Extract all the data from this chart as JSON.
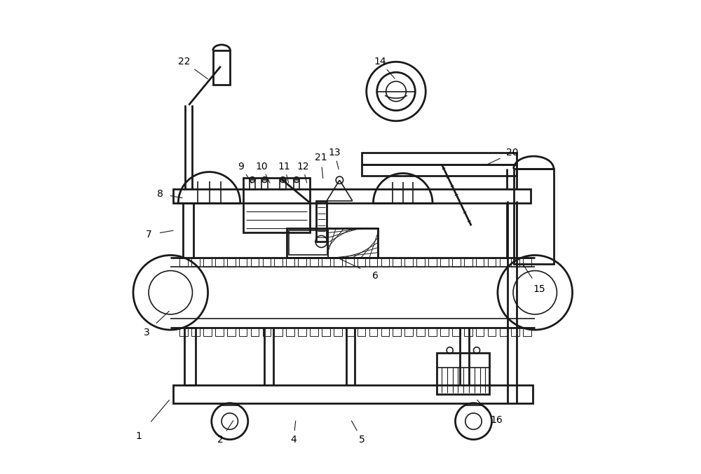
{
  "bg_color": "#ffffff",
  "line_color": "#1a1a1a",
  "figsize": [
    10.0,
    6.77
  ],
  "dpi": 100,
  "label_fs": 10,
  "labels": {
    "1": [
      0.035,
      0.062,
      0.105,
      0.145
    ],
    "2": [
      0.215,
      0.055,
      0.245,
      0.1
    ],
    "3": [
      0.052,
      0.29,
      0.105,
      0.34
    ],
    "4": [
      0.375,
      0.055,
      0.38,
      0.1
    ],
    "5": [
      0.525,
      0.055,
      0.5,
      0.1
    ],
    "6": [
      0.555,
      0.415,
      0.47,
      0.455
    ],
    "7": [
      0.058,
      0.505,
      0.115,
      0.515
    ],
    "8": [
      0.082,
      0.595,
      0.135,
      0.585
    ],
    "9": [
      0.26,
      0.655,
      0.285,
      0.615
    ],
    "10": [
      0.305,
      0.655,
      0.325,
      0.615
    ],
    "11": [
      0.355,
      0.655,
      0.365,
      0.615
    ],
    "12": [
      0.395,
      0.655,
      0.405,
      0.615
    ],
    "13": [
      0.465,
      0.685,
      0.475,
      0.645
    ],
    "14": [
      0.565,
      0.885,
      0.6,
      0.845
    ],
    "15": [
      0.915,
      0.385,
      0.875,
      0.445
    ],
    "16": [
      0.82,
      0.098,
      0.775,
      0.145
    ],
    "20": [
      0.855,
      0.685,
      0.79,
      0.655
    ],
    "21": [
      0.435,
      0.675,
      0.44,
      0.625
    ],
    "22": [
      0.135,
      0.885,
      0.19,
      0.845
    ]
  }
}
